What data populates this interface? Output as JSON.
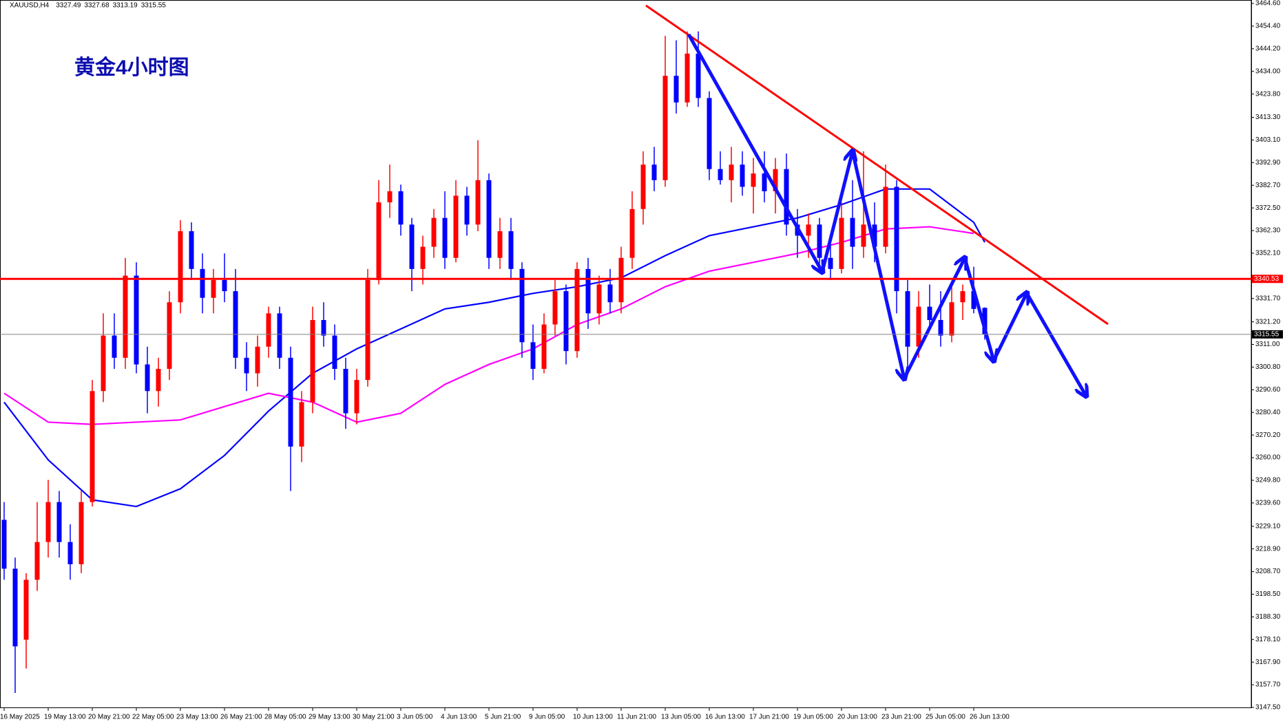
{
  "chart_data": {
    "type": "candlestick",
    "header": {
      "symbol": "XAUUSD,H4",
      "ohlc": [
        3327.49,
        3327.68,
        3313.19,
        3315.55
      ]
    },
    "title": "黄金4小时图",
    "up_color": "#ff0000",
    "down_color": "#0000ff",
    "categories": [
      "16 May 2025",
      null,
      null,
      null,
      "19 May 13:00",
      null,
      null,
      null,
      "20 May 21:00",
      null,
      null,
      null,
      "22 May 05:00",
      null,
      null,
      null,
      "23 May 13:00",
      null,
      null,
      null,
      "26 May 21:00",
      null,
      null,
      null,
      "28 May 05:00",
      null,
      null,
      null,
      "29 May 13:00",
      null,
      null,
      null,
      "30 May 21:00",
      null,
      null,
      null,
      "3 Jun 05:00",
      null,
      null,
      null,
      "4 Jun 13:00",
      null,
      null,
      null,
      "5 Jun 21:00",
      null,
      null,
      null,
      "9 Jun 05:00",
      null,
      null,
      null,
      "10 Jun 13:00",
      null,
      null,
      null,
      "11 Jun 21:00",
      null,
      null,
      null,
      "13 Jun 05:00",
      null,
      null,
      null,
      "16 Jun 13:00",
      null,
      null,
      null,
      "17 Jun 21:00",
      null,
      null,
      null,
      "19 Jun 05:00",
      null,
      null,
      null,
      "20 Jun 13:00",
      null,
      null,
      null,
      "23 Jun 21:00",
      null,
      null,
      null,
      "25 Jun 05:00",
      null,
      null,
      null,
      "26 Jun 13:00",
      null
    ],
    "ohlc": [
      [
        3232,
        3240,
        3205,
        3210
      ],
      [
        3210,
        3215,
        3154,
        3175
      ],
      [
        3178,
        3208,
        3165,
        3205
      ],
      [
        3205,
        3240,
        3200,
        3222
      ],
      [
        3222,
        3250,
        3215,
        3240
      ],
      [
        3240,
        3245,
        3215,
        3222
      ],
      [
        3222,
        3230,
        3205,
        3212
      ],
      [
        3212,
        3245,
        3208,
        3240
      ],
      [
        3240,
        3295,
        3238,
        3290
      ],
      [
        3290,
        3325,
        3285,
        3315
      ],
      [
        3315,
        3325,
        3300,
        3305
      ],
      [
        3305,
        3350,
        3300,
        3342
      ],
      [
        3342,
        3348,
        3298,
        3302
      ],
      [
        3302,
        3310,
        3280,
        3290
      ],
      [
        3290,
        3305,
        3283,
        3300
      ],
      [
        3300,
        3335,
        3295,
        3330
      ],
      [
        3330,
        3367,
        3325,
        3362
      ],
      [
        3362,
        3366,
        3340,
        3345
      ],
      [
        3345,
        3352,
        3325,
        3332
      ],
      [
        3332,
        3345,
        3325,
        3340
      ],
      [
        3340,
        3352,
        3330,
        3335
      ],
      [
        3335,
        3345,
        3300,
        3305
      ],
      [
        3305,
        3312,
        3290,
        3298
      ],
      [
        3298,
        3315,
        3292,
        3310
      ],
      [
        3310,
        3328,
        3305,
        3325
      ],
      [
        3325,
        3328,
        3300,
        3305
      ],
      [
        3305,
        3310,
        3245,
        3265
      ],
      [
        3265,
        3290,
        3258,
        3285
      ],
      [
        3285,
        3328,
        3280,
        3322
      ],
      [
        3322,
        3330,
        3310,
        3315
      ],
      [
        3315,
        3320,
        3295,
        3300
      ],
      [
        3300,
        3305,
        3273,
        3280
      ],
      [
        3280,
        3300,
        3275,
        3295
      ],
      [
        3295,
        3345,
        3292,
        3340
      ],
      [
        3340,
        3385,
        3338,
        3375
      ],
      [
        3375,
        3392,
        3368,
        3380
      ],
      [
        3380,
        3383,
        3360,
        3365
      ],
      [
        3365,
        3368,
        3335,
        3345
      ],
      [
        3345,
        3360,
        3338,
        3355
      ],
      [
        3355,
        3372,
        3350,
        3368
      ],
      [
        3368,
        3380,
        3345,
        3350
      ],
      [
        3350,
        3385,
        3348,
        3378
      ],
      [
        3378,
        3382,
        3360,
        3365
      ],
      [
        3365,
        3403,
        3362,
        3385
      ],
      [
        3385,
        3388,
        3345,
        3350
      ],
      [
        3350,
        3368,
        3345,
        3362
      ],
      [
        3362,
        3368,
        3340,
        3345
      ],
      [
        3345,
        3348,
        3305,
        3312
      ],
      [
        3312,
        3320,
        3295,
        3300
      ],
      [
        3300,
        3325,
        3298,
        3320
      ],
      [
        3320,
        3340,
        3315,
        3335
      ],
      [
        3335,
        3338,
        3302,
        3308
      ],
      [
        3308,
        3348,
        3305,
        3345
      ],
      [
        3345,
        3350,
        3318,
        3325
      ],
      [
        3325,
        3342,
        3320,
        3338
      ],
      [
        3338,
        3345,
        3325,
        3330
      ],
      [
        3330,
        3355,
        3325,
        3350
      ],
      [
        3350,
        3380,
        3345,
        3372
      ],
      [
        3372,
        3398,
        3365,
        3392
      ],
      [
        3392,
        3400,
        3380,
        3385
      ],
      [
        3385,
        3450,
        3382,
        3432
      ],
      [
        3432,
        3448,
        3415,
        3420
      ],
      [
        3420,
        3452,
        3418,
        3442
      ],
      [
        3442,
        3452,
        3418,
        3422
      ],
      [
        3422,
        3425,
        3385,
        3390
      ],
      [
        3390,
        3398,
        3383,
        3385
      ],
      [
        3385,
        3400,
        3375,
        3392
      ],
      [
        3392,
        3398,
        3378,
        3382
      ],
      [
        3382,
        3395,
        3370,
        3388
      ],
      [
        3388,
        3398,
        3375,
        3380
      ],
      [
        3380,
        3395,
        3370,
        3390
      ],
      [
        3390,
        3397,
        3360,
        3365
      ],
      [
        3365,
        3372,
        3350,
        3360
      ],
      [
        3360,
        3370,
        3350,
        3365
      ],
      [
        3365,
        3368,
        3345,
        3350
      ],
      [
        3350,
        3358,
        3340,
        3345
      ],
      [
        3345,
        3375,
        3343,
        3368
      ],
      [
        3368,
        3385,
        3345,
        3355
      ],
      [
        3355,
        3398,
        3350,
        3365
      ],
      [
        3365,
        3375,
        3348,
        3355
      ],
      [
        3355,
        3392,
        3352,
        3382
      ],
      [
        3382,
        3385,
        3325,
        3335
      ],
      [
        3335,
        3340,
        3300,
        3310
      ],
      [
        3310,
        3335,
        3305,
        3328
      ],
      [
        3328,
        3338,
        3318,
        3322
      ],
      [
        3322,
        3335,
        3310,
        3315
      ],
      [
        3315,
        3338,
        3312,
        3330
      ],
      [
        3330,
        3338,
        3322,
        3335
      ],
      [
        3335,
        3346,
        3325,
        3327
      ],
      [
        3327.49,
        3327.68,
        3313.19,
        3315.55
      ]
    ],
    "lines": [
      {
        "color": "#0000ff",
        "x": [
          0,
          4,
          8,
          12,
          16,
          20,
          24,
          28,
          32,
          36,
          40,
          44,
          48,
          52,
          56,
          60,
          64,
          68,
          72,
          76,
          80,
          84,
          88,
          89
        ],
        "values": [
          3285,
          3259,
          3241,
          3238,
          3246,
          3261,
          3281,
          3298,
          3309,
          3318,
          3327,
          3330,
          3334,
          3337,
          3341,
          3351,
          3360,
          3364,
          3368,
          3374,
          3381,
          3381,
          3366,
          3357
        ]
      },
      {
        "color": "#ff00ff",
        "x": [
          0,
          4,
          8,
          12,
          16,
          20,
          24,
          28,
          32,
          36,
          40,
          44,
          48,
          52,
          56,
          60,
          64,
          68,
          72,
          76,
          80,
          84,
          88
        ],
        "values": [
          3289,
          3276,
          3275,
          3276,
          3277,
          3283,
          3289,
          3285,
          3276,
          3280,
          3293,
          3302,
          3309,
          3320,
          3327,
          3337,
          3344,
          3348,
          3352,
          3357,
          3363,
          3364,
          3361
        ]
      }
    ],
    "levels": [
      {
        "value": 3340.53,
        "color": "#ff0000"
      },
      {
        "value": 3315.55,
        "color": "#808080"
      }
    ],
    "ylim": [
      3147.5,
      3464.6
    ],
    "yticks": [
      {
        "value": 3464.6,
        "label": "3464.60"
      },
      {
        "value": 3454.4,
        "label": "3454.40"
      },
      {
        "value": 3444.2,
        "label": "3444.20"
      },
      {
        "value": 3434,
        "label": "3434.00"
      },
      {
        "value": 3423.8,
        "label": "3423.80"
      },
      {
        "value": 3413.3,
        "label": "3413.30"
      },
      {
        "value": 3403.1,
        "label": "3403.10"
      },
      {
        "value": 3392.9,
        "label": "3392.90"
      },
      {
        "value": 3382.7,
        "label": "3382.70"
      },
      {
        "value": 3372.5,
        "label": "3372.50"
      },
      {
        "value": 3362.3,
        "label": "3362.30"
      },
      {
        "value": 3352.1,
        "label": "3352.10"
      },
      {
        "value": 3331.7,
        "label": "3331.70"
      },
      {
        "value": 3321.2,
        "label": "3321.20"
      },
      {
        "value": 3311,
        "label": "3311.00"
      },
      {
        "value": 3300.8,
        "label": "3300.80"
      },
      {
        "value": 3290.6,
        "label": "3290.60"
      },
      {
        "value": 3280.4,
        "label": "3280.40"
      },
      {
        "value": 3270.2,
        "label": "3270.20"
      },
      {
        "value": 3260,
        "label": "3260.00"
      },
      {
        "value": 3249.8,
        "label": "3249.80"
      },
      {
        "value": 3239.6,
        "label": "3239.60"
      },
      {
        "value": 3229.1,
        "label": "3229.10"
      },
      {
        "value": 3218.9,
        "label": "3218.90"
      },
      {
        "value": 3208.7,
        "label": "3208.70"
      },
      {
        "value": 3198.5,
        "label": "3198.50"
      },
      {
        "value": 3188.3,
        "label": "3188.30"
      },
      {
        "value": 3178.1,
        "label": "3178.10"
      },
      {
        "value": 3167.9,
        "label": "3167.90"
      },
      {
        "value": 3157.7,
        "label": "3157.70"
      },
      {
        "value": 3147.5,
        "label": "3147.50"
      }
    ]
  }
}
